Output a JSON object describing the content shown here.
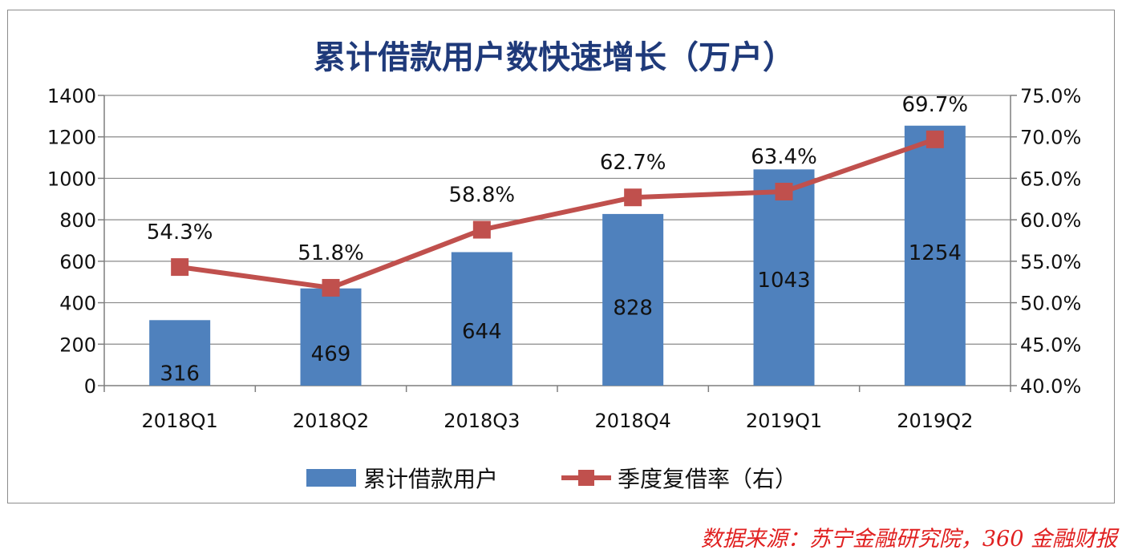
{
  "chart_data": {
    "type": "bar+line",
    "title": "累计借款用户数快速增长（万户）",
    "categories": [
      "2018Q1",
      "2018Q2",
      "2018Q3",
      "2018Q4",
      "2019Q1",
      "2019Q2"
    ],
    "series": [
      {
        "name": "累计借款用户",
        "type": "bar",
        "axis": "left",
        "color": "#4f81bd",
        "values": [
          316,
          469,
          644,
          828,
          1043,
          1254
        ],
        "labels": [
          "316",
          "469",
          "644",
          "828",
          "1043",
          "1254"
        ]
      },
      {
        "name": "季度复借率（右）",
        "type": "line",
        "axis": "right",
        "color": "#c0504d",
        "values": [
          54.3,
          51.8,
          58.8,
          62.7,
          63.4,
          69.7
        ],
        "labels": [
          "54.3%",
          "51.8%",
          "58.8%",
          "62.7%",
          "63.4%",
          "69.7%"
        ]
      }
    ],
    "left_axis": {
      "ylim": [
        0,
        1400
      ],
      "ticks": [
        "0",
        "200",
        "400",
        "600",
        "800",
        "1000",
        "1200",
        "1400"
      ]
    },
    "right_axis": {
      "ylim": [
        40,
        75
      ],
      "ticks": [
        "40.0%",
        "45.0%",
        "50.0%",
        "55.0%",
        "60.0%",
        "65.0%",
        "70.0%",
        "75.0%"
      ]
    },
    "grid": true,
    "legend": "bottom"
  },
  "source_note": "数据来源：苏宁金融研究院，360 金融财报"
}
